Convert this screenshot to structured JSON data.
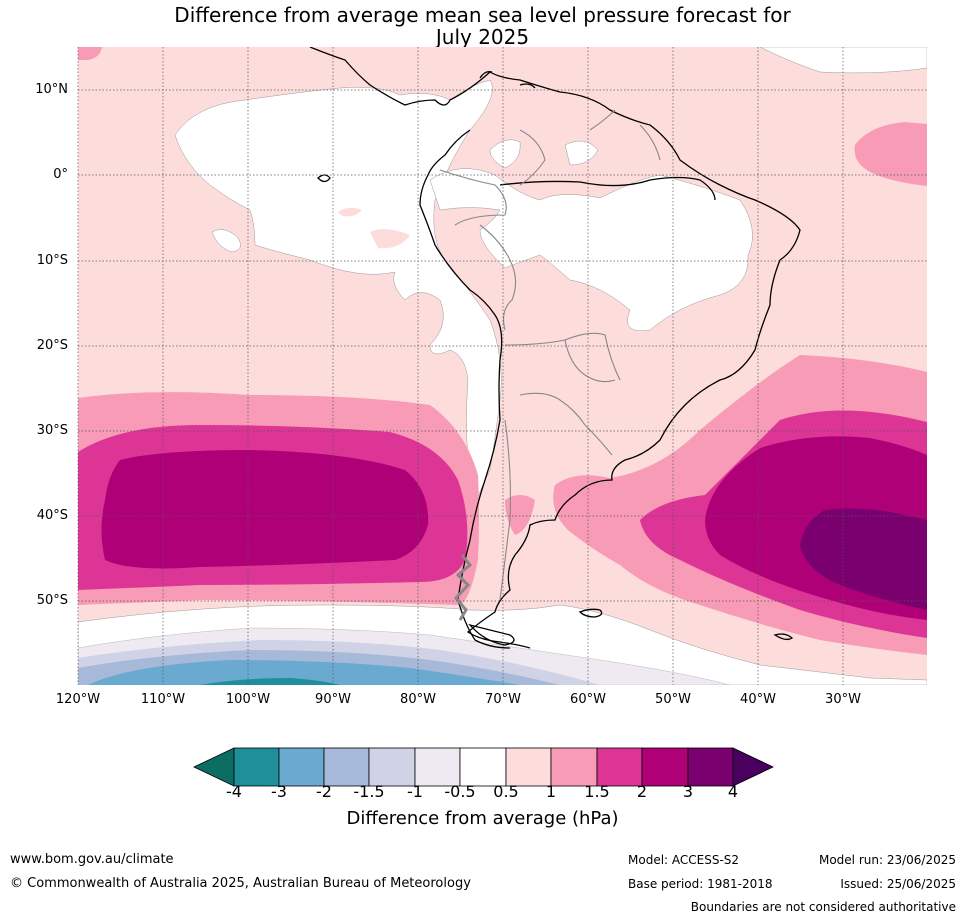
{
  "title": [
    "Difference from average mean sea level pressure forecast for",
    "July 2025"
  ],
  "lat_labels": [
    "10°N",
    "0°",
    "10°S",
    "20°S",
    "30°S",
    "40°S",
    "50°S"
  ],
  "lon_labels": [
    "120°W",
    "110°W",
    "100°W",
    "90°W",
    "80°W",
    "70°W",
    "60°W",
    "50°W",
    "40°W",
    "30°W"
  ],
  "colorbar": {
    "ticks": [
      "-4",
      "-3",
      "-2",
      "-1.5",
      "-1",
      "-0.5",
      "0.5",
      "1",
      "1.5",
      "2",
      "3",
      "4"
    ],
    "colors": [
      "#0c6e62",
      "#1f8f99",
      "#6aaad0",
      "#a7b9d8",
      "#d0d2e6",
      "#efeaf2",
      "#ffffff",
      "#fddcdc",
      "#f89bb6",
      "#dc3596",
      "#b00078",
      "#7a0070",
      "#4a005f"
    ],
    "label": "Difference from average (hPa)"
  },
  "footer": {
    "url": "www.bom.gov.au/climate",
    "copyright": "© Commonwealth of Australia 2025, Australian Bureau of Meteorology",
    "model": "Model: ACCESS-S2",
    "base_period": "Base period: 1981-2018",
    "model_run": "Model run: 23/06/2025",
    "issued": "Issued: 25/06/2025",
    "disclaimer": "Boundaries are not considered authoritative"
  }
}
